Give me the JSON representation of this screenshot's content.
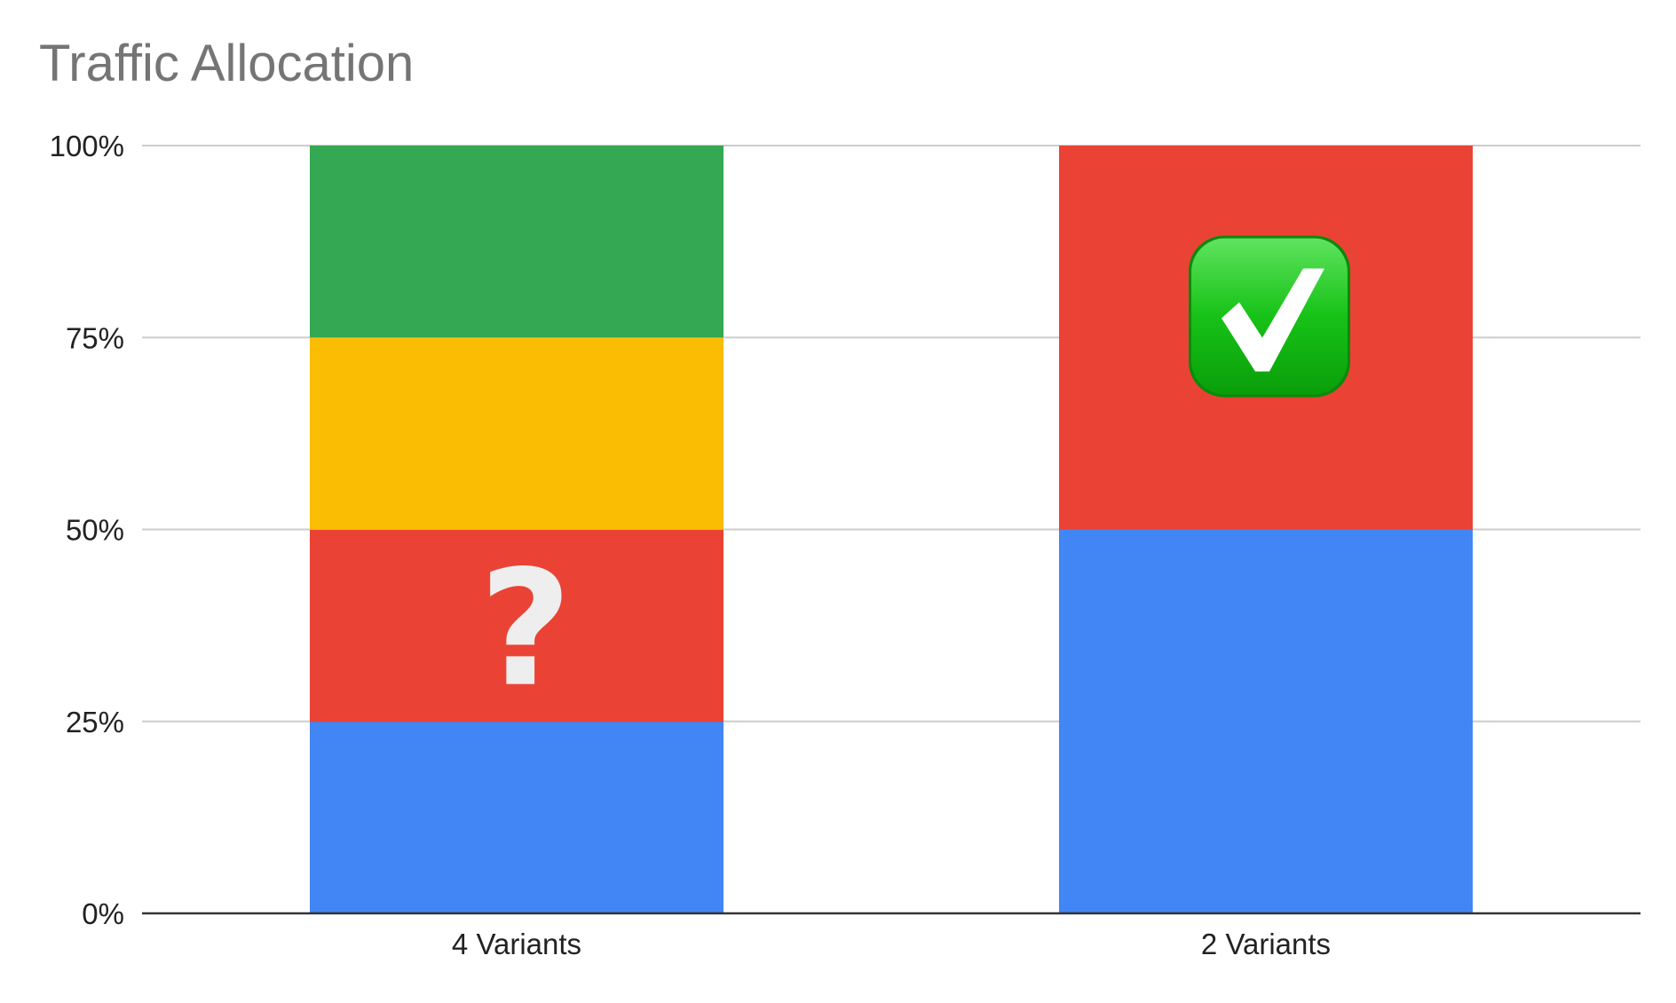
{
  "chart_data": {
    "type": "bar",
    "stacked": true,
    "title": "Traffic Allocation",
    "xlabel": "",
    "ylabel": "",
    "ylim": [
      0,
      100
    ],
    "y_ticks": [
      "0%",
      "25%",
      "50%",
      "75%",
      "100%"
    ],
    "y_tick_values": [
      0,
      25,
      50,
      75,
      100
    ],
    "grid": true,
    "legend": "none",
    "categories": [
      "4 Variants",
      "2 Variants"
    ],
    "bars": [
      {
        "category": "4 Variants",
        "segments": [
          {
            "value": 25,
            "color": "#4285f4"
          },
          {
            "value": 25,
            "color": "#ea4335"
          },
          {
            "value": 25,
            "color": "#fbbc04"
          },
          {
            "value": 25,
            "color": "#34a853"
          }
        ],
        "annotation": {
          "type": "question-mark-icon",
          "text": "?",
          "segment": 1,
          "color": "#eeeeee"
        }
      },
      {
        "category": "2 Variants",
        "segments": [
          {
            "value": 50,
            "color": "#4285f4"
          },
          {
            "value": 50,
            "color": "#ea4335"
          }
        ],
        "annotation": {
          "type": "check-mark-icon",
          "segment": 1,
          "color": "#1fbf1f"
        }
      }
    ]
  }
}
